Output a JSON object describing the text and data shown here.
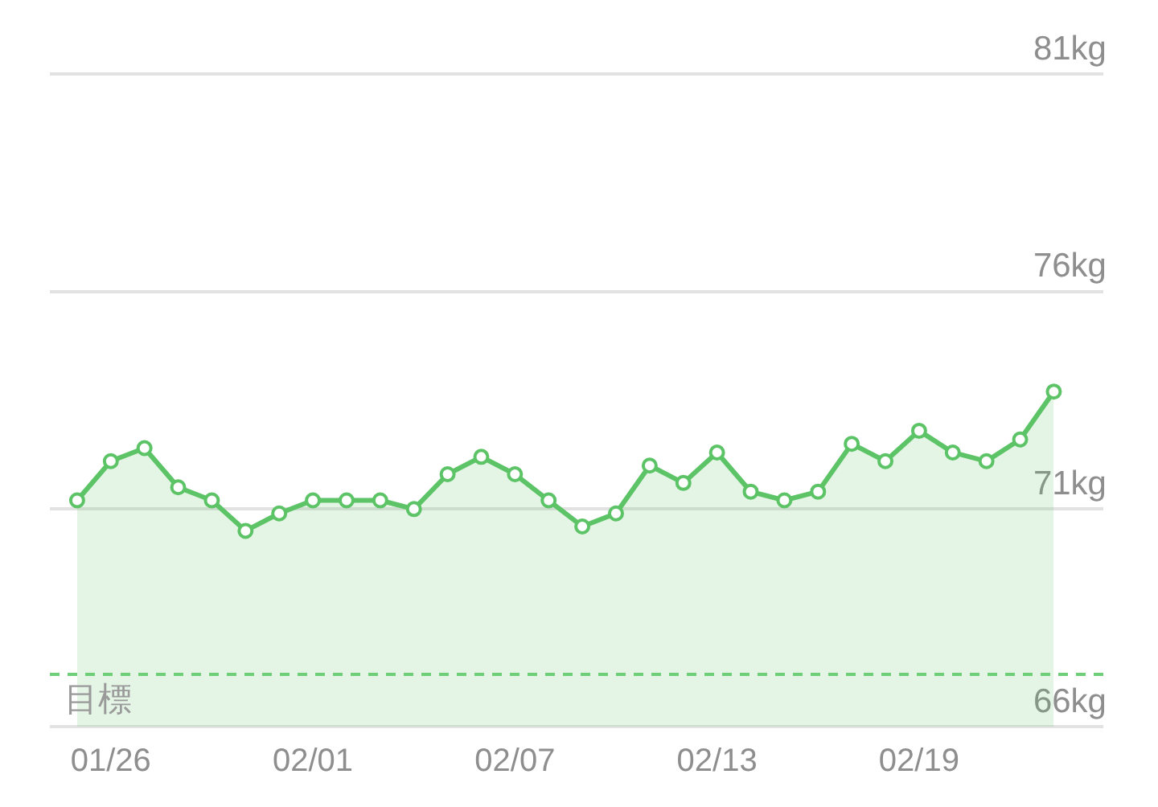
{
  "chart_data": {
    "type": "area",
    "categories": [
      null,
      "01/26",
      null,
      null,
      null,
      null,
      null,
      "02/01",
      null,
      null,
      null,
      null,
      null,
      "02/07",
      null,
      null,
      null,
      null,
      null,
      "02/13",
      null,
      null,
      null,
      null,
      null,
      "02/19",
      null,
      null,
      null,
      null
    ],
    "series": [
      {
        "color": "#5cc466",
        "values": [
          71.2,
          72.1,
          72.4,
          71.5,
          71.2,
          70.5,
          70.9,
          71.2,
          71.2,
          71.2,
          71.0,
          71.8,
          72.2,
          71.8,
          71.2,
          70.6,
          70.9,
          72.0,
          71.6,
          72.3,
          71.4,
          71.2,
          71.4,
          72.5,
          72.1,
          72.8,
          72.3,
          72.1,
          72.6,
          73.7
        ]
      }
    ],
    "ylim": [
      66,
      81
    ],
    "yticks": [
      {
        "value": 66,
        "label": "66kg"
      },
      {
        "value": 71,
        "label": "71kg"
      },
      {
        "value": 76,
        "label": "76kg"
      },
      {
        "value": 81,
        "label": "81kg"
      }
    ],
    "grid": "y",
    "legend": false,
    "marker": "circle",
    "line_style": "solid",
    "ref_lines": [
      {
        "axis": "y",
        "value": 67.2,
        "label": "目標",
        "color": "#6fcf78",
        "line_style": "dashed"
      }
    ]
  }
}
